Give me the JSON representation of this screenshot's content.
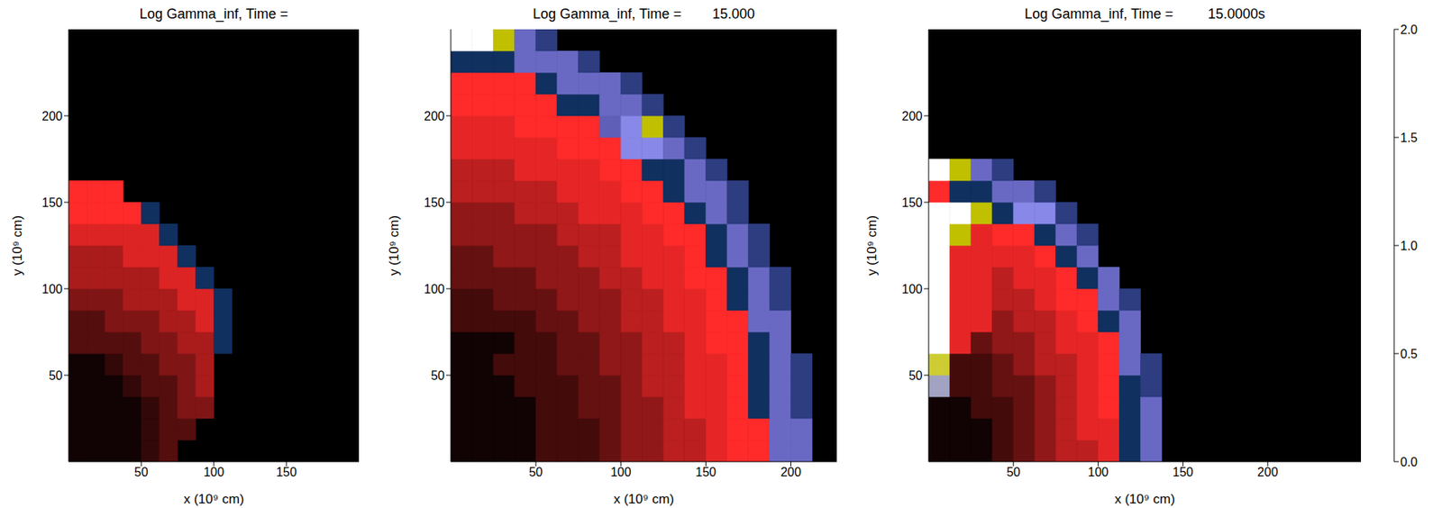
{
  "chart_data": [
    {
      "type": "heatmap",
      "title": "Log Gamma_inf, Time =",
      "x_label": "x (10⁹ cm)",
      "y_label": "y (10⁹ cm)",
      "xlim": [
        0,
        200
      ],
      "ylim": [
        0,
        250
      ],
      "xticks": [
        50,
        100,
        150
      ],
      "yticks": [
        50,
        100,
        150,
        200
      ],
      "x_edges": [
        0,
        12.5,
        25,
        37.5,
        50,
        62.5,
        75,
        87.5,
        100,
        112.5
      ],
      "y_edges": [
        0,
        12.5,
        25,
        37.5,
        50,
        62.5,
        75,
        87.5,
        100,
        112.5,
        125,
        137.5,
        150,
        162.5
      ],
      "values": [
        [
          0.02,
          0.02,
          0.02,
          0.02,
          0.06,
          0.1,
          null,
          null,
          null
        ],
        [
          0.02,
          0.02,
          0.02,
          0.02,
          0.06,
          0.1,
          0.1,
          null,
          null
        ],
        [
          0.02,
          0.02,
          0.02,
          0.02,
          0.06,
          0.1,
          0.15,
          0.15,
          null
        ],
        [
          0.02,
          0.02,
          0.02,
          0.06,
          0.1,
          0.1,
          0.15,
          0.2,
          null
        ],
        [
          0.02,
          0.02,
          0.06,
          0.1,
          0.1,
          0.15,
          0.15,
          0.2,
          null
        ],
        [
          0.1,
          0.1,
          0.1,
          0.1,
          0.15,
          0.15,
          0.2,
          0.2,
          0.5
        ],
        [
          0.1,
          0.1,
          0.15,
          0.15,
          0.15,
          0.2,
          0.2,
          0.26,
          0.5
        ],
        [
          0.15,
          0.15,
          0.15,
          0.2,
          0.2,
          0.2,
          0.26,
          0.26,
          0.5
        ],
        [
          0.2,
          0.2,
          0.2,
          0.2,
          0.2,
          0.26,
          0.26,
          0.5,
          null
        ],
        [
          0.2,
          0.2,
          0.2,
          0.26,
          0.26,
          0.26,
          0.5,
          null,
          null
        ],
        [
          0.26,
          0.26,
          0.26,
          0.26,
          0.26,
          0.5,
          null,
          null,
          null
        ],
        [
          0.3,
          0.3,
          0.3,
          0.3,
          0.5,
          null,
          null,
          null,
          null
        ],
        [
          0.3,
          0.3,
          0.3,
          null,
          null,
          null,
          null,
          null,
          null
        ]
      ]
    },
    {
      "type": "heatmap",
      "title": "Log Gamma_inf, Time =        15.000",
      "x_label": "x (10⁹ cm)",
      "y_label": "y (10⁹ cm)",
      "xlim": [
        0,
        227
      ],
      "ylim": [
        0,
        250
      ],
      "xticks": [
        50,
        100,
        150,
        200
      ],
      "yticks": [
        50,
        100,
        150,
        200
      ],
      "x_edges": [
        0,
        12.5,
        25,
        37.5,
        50,
        62.5,
        75,
        87.5,
        100,
        112.5,
        125,
        137.5,
        150,
        162.5,
        175,
        187.5,
        200,
        212.5
      ],
      "y_edges": [
        0,
        12.5,
        25,
        37.5,
        50,
        62.5,
        75,
        87.5,
        100,
        112.5,
        125,
        137.5,
        150,
        162.5,
        175,
        187.5,
        200,
        212.5,
        225,
        237.5,
        250
      ],
      "values": [
        [
          0.02,
          0.02,
          0.02,
          0.02,
          0.08,
          0.08,
          0.08,
          0.12,
          0.17,
          0.17,
          0.22,
          0.22,
          0.27,
          0.3,
          0.3,
          0.85,
          0.85
        ],
        [
          0.02,
          0.02,
          0.02,
          0.02,
          0.08,
          0.08,
          0.08,
          0.12,
          0.17,
          0.17,
          0.22,
          0.22,
          0.27,
          0.3,
          0.3,
          0.85,
          0.85
        ],
        [
          0.02,
          0.02,
          0.02,
          0.02,
          0.08,
          0.08,
          0.12,
          0.12,
          0.17,
          0.17,
          0.22,
          0.27,
          0.27,
          0.3,
          0.5,
          0.85,
          0.6
        ],
        [
          0.02,
          0.02,
          0.02,
          0.08,
          0.08,
          0.08,
          0.12,
          0.12,
          0.17,
          0.22,
          0.22,
          0.27,
          0.27,
          0.3,
          0.5,
          0.85,
          0.6
        ],
        [
          0.02,
          0.02,
          0.08,
          0.08,
          0.08,
          0.12,
          0.12,
          0.17,
          0.17,
          0.22,
          0.22,
          0.27,
          0.27,
          0.3,
          0.5,
          0.85,
          0.6
        ],
        [
          0.02,
          0.02,
          0.02,
          0.08,
          0.08,
          0.12,
          0.12,
          0.17,
          0.17,
          0.22,
          0.22,
          0.27,
          0.3,
          0.3,
          0.5,
          0.85,
          null
        ],
        [
          0.08,
          0.08,
          0.08,
          0.08,
          0.12,
          0.12,
          0.17,
          0.17,
          0.22,
          0.22,
          0.27,
          0.27,
          0.3,
          0.3,
          0.85,
          0.85,
          null
        ],
        [
          0.08,
          0.08,
          0.12,
          0.12,
          0.12,
          0.17,
          0.17,
          0.17,
          0.22,
          0.22,
          0.27,
          0.27,
          0.3,
          0.5,
          0.85,
          0.6,
          null
        ],
        [
          0.12,
          0.12,
          0.12,
          0.12,
          0.17,
          0.17,
          0.17,
          0.22,
          0.22,
          0.27,
          0.27,
          0.3,
          0.3,
          0.5,
          0.85,
          0.6,
          null
        ],
        [
          0.12,
          0.12,
          0.17,
          0.17,
          0.17,
          0.17,
          0.22,
          0.22,
          0.27,
          0.27,
          0.27,
          0.3,
          0.5,
          0.85,
          0.6,
          null,
          null
        ],
        [
          0.17,
          0.17,
          0.17,
          0.17,
          0.17,
          0.22,
          0.22,
          0.22,
          0.27,
          0.27,
          0.3,
          0.3,
          0.5,
          0.85,
          0.6,
          null,
          null
        ],
        [
          0.17,
          0.17,
          0.17,
          0.22,
          0.22,
          0.22,
          0.27,
          0.27,
          0.27,
          0.3,
          0.3,
          0.5,
          0.85,
          0.6,
          null,
          null,
          null
        ],
        [
          0.22,
          0.22,
          0.22,
          0.22,
          0.22,
          0.27,
          0.27,
          0.27,
          0.3,
          0.3,
          0.5,
          0.85,
          0.85,
          0.6,
          null,
          null,
          null
        ],
        [
          0.22,
          0.22,
          0.22,
          0.27,
          0.27,
          0.27,
          0.27,
          0.3,
          0.3,
          0.5,
          0.5,
          0.85,
          0.6,
          null,
          null,
          null,
          null
        ],
        [
          0.27,
          0.27,
          0.27,
          0.27,
          0.27,
          0.3,
          0.3,
          0.3,
          1.0,
          1.0,
          0.85,
          0.6,
          null,
          null,
          null,
          null,
          null
        ],
        [
          0.27,
          0.27,
          0.27,
          0.3,
          0.3,
          0.3,
          0.3,
          0.8,
          1.0,
          1.5,
          0.6,
          null,
          null,
          null,
          null,
          null,
          null
        ],
        [
          0.3,
          0.3,
          0.3,
          0.3,
          0.3,
          0.5,
          0.5,
          0.85,
          0.85,
          0.6,
          null,
          null,
          null,
          null,
          null,
          null,
          null
        ],
        [
          0.3,
          0.3,
          0.3,
          0.3,
          0.5,
          0.85,
          0.85,
          0.85,
          0.6,
          null,
          null,
          null,
          null,
          null,
          null,
          null,
          null
        ],
        [
          0.5,
          0.5,
          0.5,
          0.85,
          0.85,
          0.85,
          0.6,
          null,
          null,
          null,
          null,
          null,
          null,
          null,
          null,
          null,
          null
        ],
        [
          2.0,
          2.0,
          1.5,
          0.85,
          0.6,
          null,
          null,
          null,
          null,
          null,
          null,
          null,
          null,
          null,
          null,
          null,
          null
        ]
      ]
    },
    {
      "type": "heatmap",
      "title": "Log Gamma_inf, Time =         15.0000s",
      "x_label": "x (10⁹ cm)",
      "y_label": "y (10⁹ cm)",
      "xlim": [
        0,
        255
      ],
      "ylim": [
        0,
        250
      ],
      "xticks": [
        50,
        100,
        150,
        200
      ],
      "yticks": [
        50,
        100,
        150,
        200
      ],
      "x_edges": [
        0,
        12.5,
        25,
        37.5,
        50,
        62.5,
        75,
        87.5,
        100,
        112.5,
        125,
        137.5
      ],
      "y_edges": [
        0,
        12.5,
        25,
        37.5,
        50,
        62.5,
        75,
        87.5,
        100,
        112.5,
        125,
        137.5,
        150,
        162.5,
        175
      ],
      "values": [
        [
          0.02,
          0.02,
          0.02,
          0.08,
          0.12,
          0.17,
          0.22,
          0.22,
          0.27,
          0.5,
          0.85
        ],
        [
          0.02,
          0.02,
          0.02,
          0.08,
          0.12,
          0.17,
          0.22,
          0.27,
          0.27,
          0.5,
          0.85
        ],
        [
          0.02,
          0.02,
          0.08,
          0.08,
          0.12,
          0.17,
          0.22,
          0.27,
          0.3,
          0.5,
          0.85
        ],
        [
          1.2,
          0.08,
          0.08,
          0.12,
          0.12,
          0.17,
          0.22,
          0.27,
          0.3,
          0.5,
          0.6
        ],
        [
          1.6,
          0.08,
          0.08,
          0.12,
          0.17,
          0.22,
          0.22,
          0.27,
          0.3,
          0.85,
          0.6
        ],
        [
          2.0,
          0.27,
          0.12,
          0.17,
          0.17,
          0.22,
          0.27,
          0.27,
          0.3,
          0.85,
          null
        ],
        [
          2.0,
          0.27,
          0.27,
          0.17,
          0.22,
          0.22,
          0.27,
          0.3,
          0.5,
          0.85,
          null
        ],
        [
          2.0,
          0.27,
          0.27,
          0.22,
          0.22,
          0.27,
          0.3,
          0.3,
          0.85,
          0.6,
          null
        ],
        [
          2.0,
          0.27,
          0.27,
          0.22,
          0.27,
          0.27,
          0.3,
          0.5,
          0.85,
          null,
          null
        ],
        [
          2.0,
          0.27,
          0.27,
          0.27,
          0.27,
          0.3,
          0.5,
          0.85,
          null,
          null,
          null
        ],
        [
          2.0,
          1.5,
          0.27,
          0.3,
          0.3,
          0.5,
          0.85,
          0.6,
          null,
          null,
          null
        ],
        [
          2.0,
          2.0,
          1.5,
          0.5,
          1.0,
          1.0,
          0.6,
          null,
          null,
          null,
          null
        ],
        [
          0.3,
          0.5,
          0.5,
          0.85,
          0.85,
          0.6,
          null,
          null,
          null,
          null,
          null
        ],
        [
          2.0,
          1.5,
          0.85,
          0.6,
          null,
          null,
          null,
          null,
          null,
          null,
          null
        ]
      ],
      "colorbar_range": [
        0,
        2
      ],
      "colorbar_ticks": [
        {
          "value": 0,
          "label": "0.0"
        },
        {
          "value": 0.5,
          "label": "0.5"
        },
        {
          "value": 1,
          "label": "1.0"
        },
        {
          "value": 1.5,
          "label": "1.5"
        },
        {
          "value": 2,
          "label": "2.0"
        }
      ]
    }
  ]
}
